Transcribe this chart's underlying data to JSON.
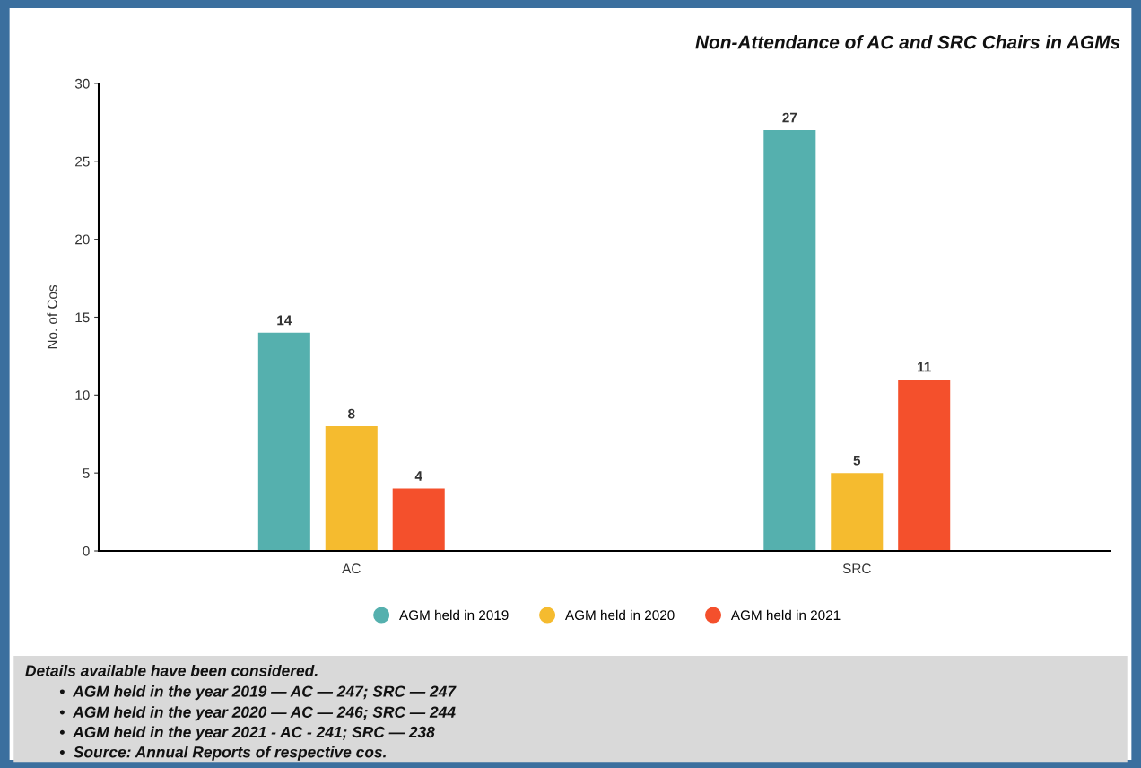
{
  "chart_data": {
    "type": "bar",
    "title": "Non-Attendance of AC and SRC Chairs in AGMs",
    "ylabel": "No. of Cos",
    "categories": [
      "AC",
      "SRC"
    ],
    "series": [
      {
        "name": "AGM held in 2019",
        "color": "#55b0ae",
        "values": [
          14,
          27
        ]
      },
      {
        "name": "AGM held in 2020",
        "color": "#f5bb2f",
        "values": [
          8,
          5
        ]
      },
      {
        "name": "AGM held in 2021",
        "color": "#f4502c",
        "values": [
          4,
          11
        ]
      }
    ],
    "ylim": [
      0,
      30
    ],
    "yticks": [
      0,
      5,
      10,
      15,
      20,
      25,
      30
    ],
    "data_labels": true,
    "grid": false,
    "legend": "bottom",
    "marker": "circle",
    "annotations": [
      "Details available have been considered.",
      "•  AGM held in the year 2019 — AC — 247; SRC — 247",
      "•  AGM held in the year 2020 — AC — 246; SRC — 244",
      "•  AGM held in the year 2021 - AC - 241; SRC — 238",
      "•  Source: Annual Reports of respective cos."
    ]
  }
}
